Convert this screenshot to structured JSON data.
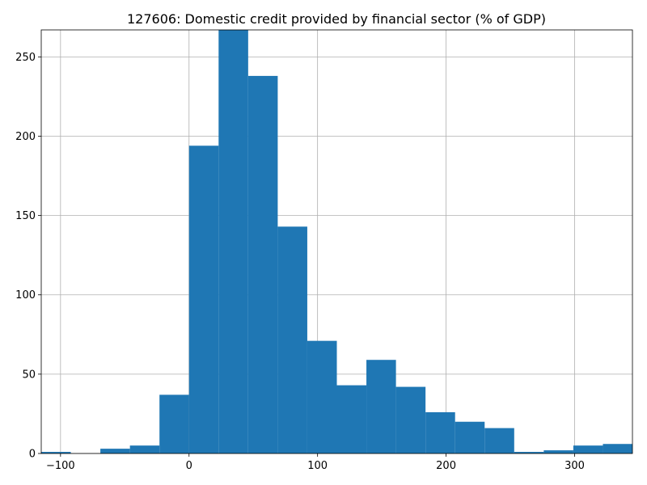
{
  "chart_data": {
    "type": "bar",
    "title": "127606: Domestic credit provided by financial sector (% of GDP)",
    "xlabel": "",
    "ylabel": "",
    "bins": [
      {
        "x0": -115.0,
        "x1": -92.0,
        "count": 1
      },
      {
        "x0": -92.0,
        "x1": -69.0,
        "count": 0
      },
      {
        "x0": -69.0,
        "x1": -46.0,
        "count": 3
      },
      {
        "x0": -46.0,
        "x1": -23.0,
        "count": 5
      },
      {
        "x0": -23.0,
        "x1": 0.0,
        "count": 37
      },
      {
        "x0": 0.0,
        "x1": 23.0,
        "count": 194
      },
      {
        "x0": 23.0,
        "x1": 46.0,
        "count": 267
      },
      {
        "x0": 46.0,
        "x1": 69.0,
        "count": 238
      },
      {
        "x0": 69.0,
        "x1": 92.0,
        "count": 143
      },
      {
        "x0": 92.0,
        "x1": 115.0,
        "count": 71
      },
      {
        "x0": 115.0,
        "x1": 138.0,
        "count": 43
      },
      {
        "x0": 138.0,
        "x1": 161.0,
        "count": 59
      },
      {
        "x0": 161.0,
        "x1": 184.0,
        "count": 42
      },
      {
        "x0": 184.0,
        "x1": 207.0,
        "count": 26
      },
      {
        "x0": 207.0,
        "x1": 230.0,
        "count": 20
      },
      {
        "x0": 230.0,
        "x1": 253.0,
        "count": 16
      },
      {
        "x0": 253.0,
        "x1": 276.0,
        "count": 1
      },
      {
        "x0": 276.0,
        "x1": 299.0,
        "count": 2
      },
      {
        "x0": 299.0,
        "x1": 322.0,
        "count": 5
      },
      {
        "x0": 322.0,
        "x1": 345.0,
        "count": 6
      }
    ],
    "xlim": [
      -115.0,
      345.0
    ],
    "ylim": [
      0,
      267
    ],
    "xticks": [
      -100,
      0,
      100,
      200,
      300
    ],
    "xtick_labels": [
      "−100",
      "0",
      "100",
      "200",
      "300"
    ],
    "yticks": [
      0,
      50,
      100,
      150,
      200,
      250
    ],
    "ytick_labels": [
      "0",
      "50",
      "100",
      "150",
      "200",
      "250"
    ],
    "grid": true,
    "bar_color": "#1f77b4",
    "grid_color": "#b0b0b0"
  }
}
